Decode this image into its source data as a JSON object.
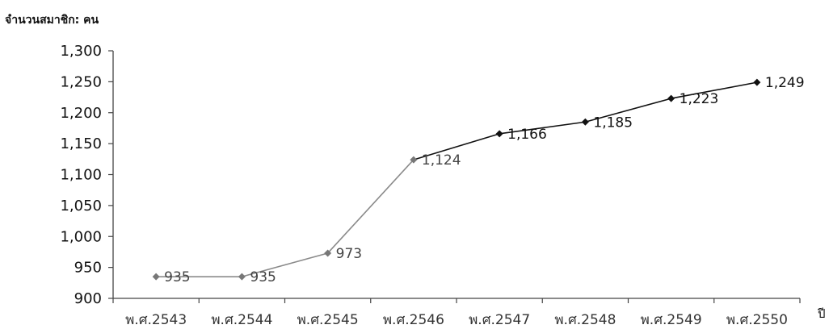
{
  "chart_data": {
    "type": "line",
    "ylabel": "จำนวนสมาชิก: คน",
    "xunit": "ปี",
    "categories": [
      "พ.ศ.2543",
      "พ.ศ.2544",
      "พ.ศ.2545",
      "พ.ศ.2546",
      "พ.ศ.2547",
      "พ.ศ.2548",
      "พ.ศ.2549",
      "พ.ศ.2550"
    ],
    "values": [
      935,
      935,
      973,
      1124,
      1166,
      1185,
      1223,
      1249
    ],
    "data_labels": [
      "935",
      "935",
      "973",
      "1,124",
      "1,166",
      "1,185",
      "1,223",
      "1,249"
    ],
    "ylim": [
      900,
      1300
    ],
    "yticks": [
      900,
      950,
      1000,
      1050,
      1100,
      1150,
      1200,
      1250,
      1300
    ],
    "ytick_labels": [
      "900",
      "950",
      "1,000",
      "1,050",
      "1,100",
      "1,150",
      "1,200",
      "1,250",
      "1,300"
    ],
    "grid": false,
    "legend": "none",
    "colors": {
      "line_early": "#8a8a8a",
      "line_late": "#111111",
      "marker": "#111111"
    }
  }
}
